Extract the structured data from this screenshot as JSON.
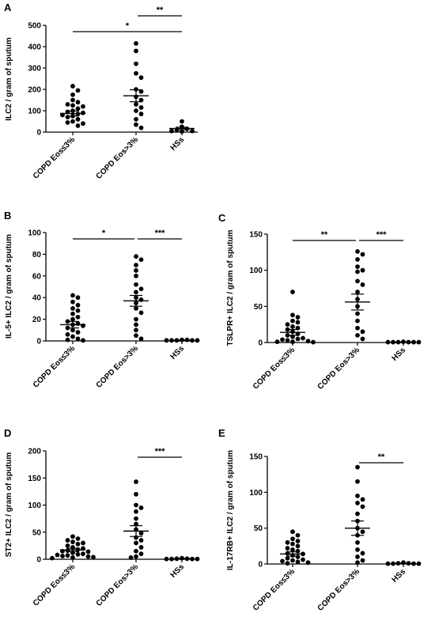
{
  "figure": {
    "colors": {
      "ink": "#000000",
      "background": "#ffffff"
    }
  },
  "chart_data": [
    {
      "panel": "A",
      "type": "scatter",
      "ylabel": "ILC2 / gram of sputum",
      "ylim": [
        0,
        500
      ],
      "yticks": [
        0,
        100,
        200,
        300,
        400,
        500
      ],
      "categories": [
        "COPD Eos≤3%",
        "COPD Eos>3%",
        "HSs"
      ],
      "groups": [
        {
          "values": [
            215,
            195,
            175,
            150,
            140,
            130,
            125,
            120,
            110,
            100,
            95,
            90,
            85,
            80,
            75,
            70,
            60,
            50,
            45,
            40,
            30
          ],
          "mean": 87,
          "sem": 12
        },
        {
          "values": [
            415,
            380,
            320,
            275,
            255,
            200,
            190,
            165,
            150,
            130,
            115,
            100,
            85,
            60,
            35,
            20
          ],
          "mean": 170,
          "sem": 28
        },
        {
          "values": [
            50,
            25,
            15,
            10,
            5,
            5,
            3
          ],
          "mean": 17,
          "sem": 6
        }
      ],
      "significance": [
        {
          "from": 1,
          "to": 2,
          "label": "**"
        },
        {
          "from": 0,
          "to": 2,
          "label": "*"
        }
      ]
    },
    {
      "panel": "B",
      "type": "scatter",
      "ylabel": "IL-5+ ILC2 / gram of sputum",
      "ylim": [
        0,
        100
      ],
      "yticks": [
        0,
        20,
        40,
        60,
        80,
        100
      ],
      "categories": [
        "COPD Eos≤3%",
        "COPD Eos>3%",
        "HSs"
      ],
      "groups": [
        {
          "values": [
            42,
            40,
            36,
            33,
            30,
            28,
            25,
            22,
            20,
            18,
            16,
            15,
            14,
            12,
            10,
            8,
            6,
            4,
            2,
            1,
            0.5
          ],
          "mean": 15,
          "sem": 3
        },
        {
          "values": [
            78,
            75,
            70,
            65,
            60,
            52,
            48,
            45,
            40,
            38,
            35,
            30,
            26,
            20,
            15,
            10,
            5,
            2
          ],
          "mean": 37,
          "sem": 5
        },
        {
          "values": [
            1,
            1,
            0.5,
            0.5,
            0.5,
            0.5,
            0.5
          ],
          "mean": 0.6,
          "sem": 0.1
        }
      ],
      "significance": [
        {
          "from": 0,
          "to": 1,
          "label": "*"
        },
        {
          "from": 1,
          "to": 2,
          "label": "***"
        }
      ]
    },
    {
      "panel": "C",
      "type": "scatter",
      "ylabel": "TSLPR+ ILC2 / gram of sputum",
      "ylim": [
        0,
        150
      ],
      "yticks": [
        0,
        50,
        100,
        150
      ],
      "categories": [
        "COPD Eos≤3%",
        "COPD Eos>3%",
        "HSs"
      ],
      "groups": [
        {
          "values": [
            70,
            38,
            35,
            30,
            28,
            25,
            22,
            20,
            18,
            15,
            12,
            10,
            8,
            6,
            5,
            4,
            3,
            2,
            1,
            1,
            0.5
          ],
          "mean": 14,
          "sem": 4
        },
        {
          "values": [
            126,
            122,
            115,
            105,
            100,
            98,
            85,
            80,
            70,
            60,
            50,
            40,
            30,
            20,
            15,
            10,
            5
          ],
          "mean": 56,
          "sem": 11
        },
        {
          "values": [
            1,
            0.5,
            0.5,
            0.5,
            0.5,
            0.5,
            0.5
          ],
          "mean": 0.6,
          "sem": 0.1
        }
      ],
      "significance": [
        {
          "from": 0,
          "to": 1,
          "label": "**"
        },
        {
          "from": 1,
          "to": 2,
          "label": "***"
        }
      ]
    },
    {
      "panel": "D",
      "type": "scatter",
      "ylabel": "ST2+ ILC2 / gram of sputum",
      "ylim": [
        0,
        200
      ],
      "yticks": [
        0,
        50,
        100,
        150,
        200
      ],
      "categories": [
        "COPD Eos≤3%",
        "COPD Eos>3%",
        "HSs"
      ],
      "groups": [
        {
          "values": [
            42,
            38,
            35,
            32,
            30,
            28,
            25,
            22,
            20,
            18,
            16,
            15,
            14,
            12,
            10,
            9,
            8,
            7,
            6,
            5,
            4,
            3,
            2
          ],
          "mean": 17,
          "sem": 3
        },
        {
          "values": [
            143,
            120,
            100,
            95,
            88,
            75,
            65,
            55,
            48,
            40,
            35,
            30,
            22,
            15,
            10,
            5,
            3
          ],
          "mean": 52,
          "sem": 10
        },
        {
          "values": [
            2,
            1,
            1,
            0.5,
            0.5,
            0.5,
            0.5
          ],
          "mean": 0.8,
          "sem": 0.2
        }
      ],
      "significance": [
        {
          "from": 1,
          "to": 2,
          "label": "***"
        }
      ]
    },
    {
      "panel": "E",
      "type": "scatter",
      "ylabel": "IL-17RB+ ILC2 / gram of sputum",
      "ylim": [
        0,
        150
      ],
      "yticks": [
        0,
        50,
        100,
        150
      ],
      "categories": [
        "COPD Eos≤3%",
        "COPD Eos>3%",
        "HSs"
      ],
      "groups": [
        {
          "values": [
            45,
            40,
            35,
            32,
            30,
            28,
            25,
            22,
            20,
            18,
            15,
            14,
            12,
            10,
            8,
            6,
            5,
            4,
            3,
            2,
            1
          ],
          "mean": 14,
          "sem": 3
        },
        {
          "values": [
            135,
            115,
            95,
            90,
            85,
            80,
            70,
            60,
            50,
            45,
            40,
            30,
            20,
            15,
            10,
            5,
            2
          ],
          "mean": 50,
          "sem": 10
        },
        {
          "values": [
            2,
            1,
            1,
            0.5,
            0.5,
            0.5,
            0.5
          ],
          "mean": 0.8,
          "sem": 0.2
        }
      ],
      "significance": [
        {
          "from": 1,
          "to": 2,
          "label": "**"
        }
      ]
    }
  ]
}
